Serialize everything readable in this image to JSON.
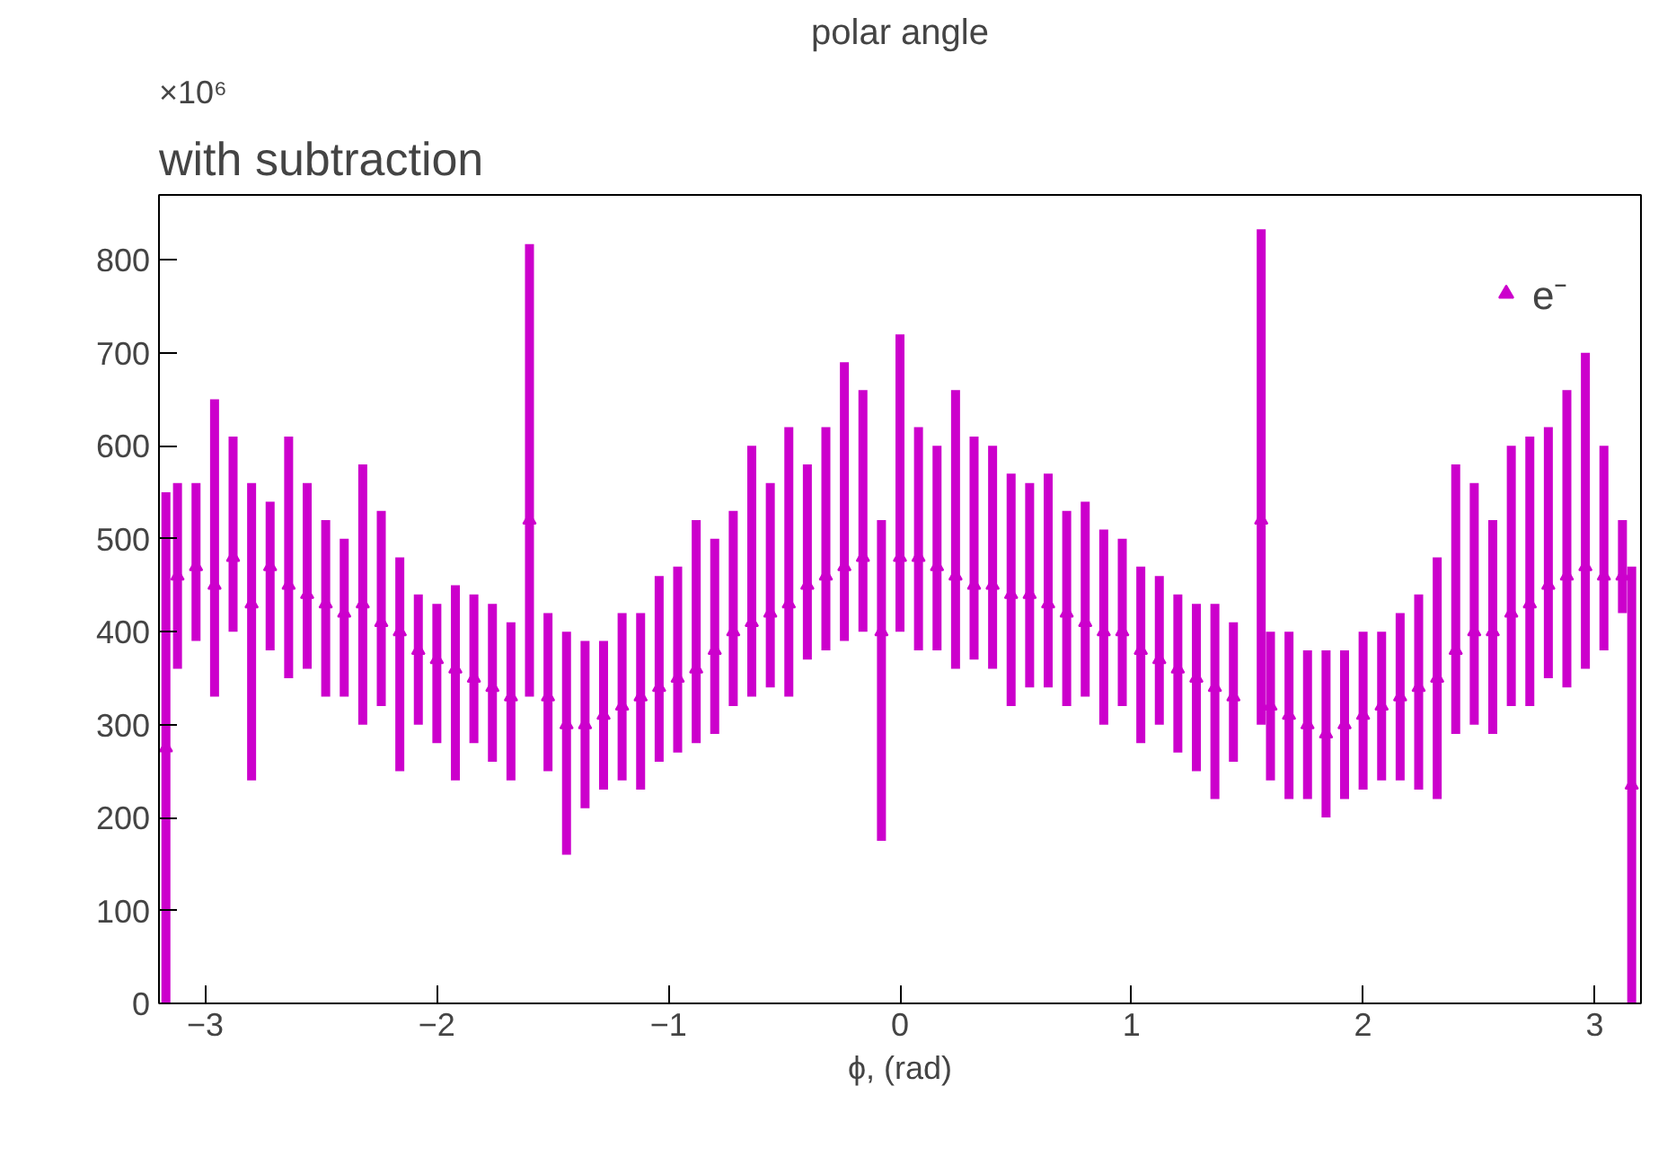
{
  "chart_data": {
    "type": "scatter",
    "title": "polar angle",
    "xlabel": "ϕ, (rad)",
    "annotations": [
      "with subtraction",
      "×10⁶"
    ],
    "xlim": [
      -3.2,
      3.2
    ],
    "ylim": [
      0,
      870
    ],
    "xticks": [
      {
        "value": -3,
        "label": "−3"
      },
      {
        "value": -2,
        "label": "−2"
      },
      {
        "value": -1,
        "label": "−1"
      },
      0,
      1,
      2,
      3
    ],
    "yticks": [
      0,
      100,
      200,
      300,
      400,
      500,
      600,
      700,
      800
    ],
    "grid": false,
    "legend": "top right",
    "marker": "triangle",
    "series": [
      {
        "name": "e⁻",
        "color": "#cc00cc",
        "x": [
          -3.17,
          -3.12,
          -3.04,
          -2.96,
          -2.88,
          -2.8,
          -2.72,
          -2.64,
          -2.56,
          -2.48,
          -2.4,
          -2.32,
          -2.24,
          -2.16,
          -2.08,
          -2.0,
          -1.92,
          -1.84,
          -1.76,
          -1.68,
          -1.6,
          -1.52,
          -1.44,
          -1.36,
          -1.28,
          -1.2,
          -1.12,
          -1.04,
          -0.96,
          -0.88,
          -0.8,
          -0.72,
          -0.64,
          -0.56,
          -0.48,
          -0.4,
          -0.32,
          -0.24,
          -0.16,
          -0.08,
          0.0,
          0.08,
          0.16,
          0.24,
          0.32,
          0.4,
          0.48,
          0.56,
          0.64,
          0.72,
          0.8,
          0.88,
          0.96,
          1.04,
          1.12,
          1.2,
          1.28,
          1.36,
          1.44,
          1.56,
          1.6,
          1.68,
          1.76,
          1.84,
          1.92,
          2.0,
          2.08,
          2.16,
          2.24,
          2.32,
          2.4,
          2.48,
          2.56,
          2.64,
          2.72,
          2.8,
          2.88,
          2.96,
          3.04,
          3.12,
          3.16
        ],
        "values": [
          275,
          460,
          470,
          450,
          480,
          430,
          470,
          450,
          440,
          430,
          420,
          430,
          410,
          400,
          380,
          370,
          360,
          350,
          340,
          330,
          520,
          330,
          300,
          300,
          310,
          320,
          330,
          340,
          350,
          360,
          380,
          400,
          410,
          420,
          430,
          450,
          460,
          470,
          480,
          400,
          480,
          480,
          470,
          460,
          450,
          450,
          440,
          440,
          430,
          420,
          410,
          400,
          400,
          380,
          370,
          360,
          350,
          340,
          330,
          520,
          320,
          310,
          300,
          290,
          300,
          310,
          320,
          330,
          340,
          350,
          380,
          400,
          400,
          420,
          430,
          450,
          460,
          470,
          460,
          460,
          235
        ],
        "errors": [
          [
            0,
            550
          ],
          [
            360,
            560
          ],
          [
            390,
            560
          ],
          [
            330,
            650
          ],
          [
            400,
            610
          ],
          [
            240,
            560
          ],
          [
            380,
            540
          ],
          [
            350,
            610
          ],
          [
            360,
            560
          ],
          [
            330,
            520
          ],
          [
            330,
            500
          ],
          [
            300,
            580
          ],
          [
            320,
            530
          ],
          [
            250,
            480
          ],
          [
            300,
            440
          ],
          [
            280,
            430
          ],
          [
            240,
            450
          ],
          [
            280,
            440
          ],
          [
            260,
            430
          ],
          [
            240,
            410
          ],
          [
            330,
            817
          ],
          [
            250,
            420
          ],
          [
            160,
            400
          ],
          [
            210,
            390
          ],
          [
            230,
            390
          ],
          [
            240,
            420
          ],
          [
            230,
            420
          ],
          [
            260,
            460
          ],
          [
            270,
            470
          ],
          [
            280,
            520
          ],
          [
            290,
            500
          ],
          [
            320,
            530
          ],
          [
            330,
            600
          ],
          [
            340,
            560
          ],
          [
            330,
            620
          ],
          [
            370,
            580
          ],
          [
            380,
            620
          ],
          [
            390,
            690
          ],
          [
            400,
            660
          ],
          [
            175,
            520
          ],
          [
            400,
            720
          ],
          [
            380,
            620
          ],
          [
            380,
            600
          ],
          [
            360,
            660
          ],
          [
            370,
            610
          ],
          [
            360,
            600
          ],
          [
            320,
            570
          ],
          [
            340,
            560
          ],
          [
            340,
            570
          ],
          [
            320,
            530
          ],
          [
            330,
            540
          ],
          [
            300,
            510
          ],
          [
            320,
            500
          ],
          [
            280,
            470
          ],
          [
            300,
            460
          ],
          [
            270,
            440
          ],
          [
            250,
            430
          ],
          [
            220,
            430
          ],
          [
            260,
            410
          ],
          [
            300,
            833
          ],
          [
            240,
            400
          ],
          [
            220,
            400
          ],
          [
            220,
            380
          ],
          [
            200,
            380
          ],
          [
            220,
            380
          ],
          [
            230,
            400
          ],
          [
            240,
            400
          ],
          [
            240,
            420
          ],
          [
            230,
            440
          ],
          [
            220,
            480
          ],
          [
            290,
            580
          ],
          [
            300,
            560
          ],
          [
            290,
            520
          ],
          [
            320,
            600
          ],
          [
            320,
            610
          ],
          [
            350,
            620
          ],
          [
            340,
            660
          ],
          [
            360,
            700
          ],
          [
            380,
            600
          ],
          [
            420,
            520
          ],
          [
            0,
            470
          ]
        ]
      }
    ]
  }
}
